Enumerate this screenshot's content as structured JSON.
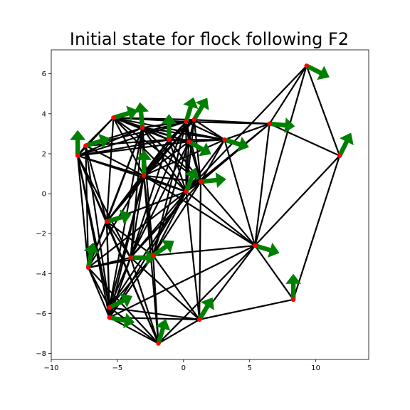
{
  "chart_data": {
    "type": "network",
    "title": "Initial state for flock following F2",
    "xlabel": "",
    "ylabel": "",
    "xlim": [
      -10,
      14
    ],
    "ylim": [
      -8.3,
      7.2
    ],
    "xticks": [
      -10,
      -5,
      0,
      5,
      10
    ],
    "yticks": [
      -8,
      -6,
      -4,
      -2,
      0,
      2,
      4,
      6
    ],
    "grid": false,
    "colors": {
      "edge": "#000000",
      "node": "#ff0000",
      "arrow": "#008000"
    },
    "nodes": [
      {
        "id": 0,
        "x": -8.0,
        "y": 1.9,
        "vx": 0.0,
        "vy": 1.0
      },
      {
        "id": 1,
        "x": -7.4,
        "y": 2.4,
        "vx": 1.0,
        "vy": 0.3
      },
      {
        "id": 2,
        "x": -5.3,
        "y": 3.8,
        "vx": 1.0,
        "vy": 0.3
      },
      {
        "id": 3,
        "x": -3.1,
        "y": 3.3,
        "vx": -0.1,
        "vy": 1.0
      },
      {
        "id": 4,
        "x": -1.1,
        "y": 2.7,
        "vx": 0.0,
        "vy": 1.0
      },
      {
        "id": 5,
        "x": 0.2,
        "y": 3.6,
        "vx": 0.3,
        "vy": 1.0
      },
      {
        "id": 6,
        "x": 0.8,
        "y": 3.7,
        "vx": 0.6,
        "vy": 1.0
      },
      {
        "id": 7,
        "x": 0.4,
        "y": 2.6,
        "vx": 0.9,
        "vy": -0.5
      },
      {
        "id": 8,
        "x": 3.1,
        "y": 2.7,
        "vx": 1.0,
        "vy": -0.3
      },
      {
        "id": 9,
        "x": 6.5,
        "y": 3.5,
        "vx": 1.0,
        "vy": -0.1
      },
      {
        "id": 10,
        "x": 9.3,
        "y": 6.4,
        "vx": 1.0,
        "vy": -0.5
      },
      {
        "id": 11,
        "x": 11.8,
        "y": 1.9,
        "vx": 0.5,
        "vy": 1.0
      },
      {
        "id": 12,
        "x": -3.0,
        "y": 0.9,
        "vx": 0.0,
        "vy": 1.0
      },
      {
        "id": 13,
        "x": 0.2,
        "y": 0.1,
        "vx": 0.4,
        "vy": 1.0
      },
      {
        "id": 14,
        "x": 1.3,
        "y": 0.6,
        "vx": 1.0,
        "vy": 0.1
      },
      {
        "id": 15,
        "x": -5.8,
        "y": -1.4,
        "vx": 1.0,
        "vy": 0.3
      },
      {
        "id": 16,
        "x": -4.0,
        "y": -3.2,
        "vx": 1.0,
        "vy": 0.0
      },
      {
        "id": 17,
        "x": -2.3,
        "y": -3.1,
        "vx": 1.0,
        "vy": 0.7
      },
      {
        "id": 18,
        "x": 5.4,
        "y": -2.6,
        "vx": 1.0,
        "vy": -0.3
      },
      {
        "id": 19,
        "x": -7.2,
        "y": -3.7,
        "vx": 0.2,
        "vy": 1.0
      },
      {
        "id": 20,
        "x": -5.6,
        "y": -5.7,
        "vx": 1.0,
        "vy": 0.5
      },
      {
        "id": 21,
        "x": -5.6,
        "y": -6.2,
        "vx": 1.0,
        "vy": -0.2
      },
      {
        "id": 22,
        "x": -1.9,
        "y": -7.5,
        "vx": 0.3,
        "vy": 1.0
      },
      {
        "id": 23,
        "x": 1.2,
        "y": -6.3,
        "vx": 0.6,
        "vy": 1.0
      },
      {
        "id": 24,
        "x": 8.3,
        "y": -5.3,
        "vx": 0.0,
        "vy": 1.0
      }
    ],
    "edges": [
      [
        0,
        1
      ],
      [
        0,
        2
      ],
      [
        0,
        3
      ],
      [
        0,
        4
      ],
      [
        0,
        5
      ],
      [
        0,
        12
      ],
      [
        0,
        13
      ],
      [
        0,
        15
      ],
      [
        0,
        19
      ],
      [
        0,
        20
      ],
      [
        0,
        21
      ],
      [
        0,
        22
      ],
      [
        0,
        16
      ],
      [
        0,
        7
      ],
      [
        1,
        2
      ],
      [
        1,
        3
      ],
      [
        1,
        4
      ],
      [
        1,
        12
      ],
      [
        1,
        15
      ],
      [
        1,
        19
      ],
      [
        1,
        20
      ],
      [
        1,
        5
      ],
      [
        2,
        3
      ],
      [
        2,
        4
      ],
      [
        2,
        5
      ],
      [
        2,
        6
      ],
      [
        2,
        7
      ],
      [
        2,
        12
      ],
      [
        2,
        14
      ],
      [
        2,
        15
      ],
      [
        2,
        8
      ],
      [
        2,
        13
      ],
      [
        3,
        4
      ],
      [
        3,
        5
      ],
      [
        3,
        6
      ],
      [
        3,
        7
      ],
      [
        3,
        8
      ],
      [
        3,
        12
      ],
      [
        3,
        13
      ],
      [
        3,
        15
      ],
      [
        3,
        16
      ],
      [
        3,
        17
      ],
      [
        3,
        19
      ],
      [
        3,
        14
      ],
      [
        3,
        20
      ],
      [
        4,
        5
      ],
      [
        4,
        6
      ],
      [
        4,
        7
      ],
      [
        4,
        8
      ],
      [
        4,
        12
      ],
      [
        4,
        13
      ],
      [
        4,
        14
      ],
      [
        4,
        15
      ],
      [
        4,
        16
      ],
      [
        5,
        6
      ],
      [
        5,
        7
      ],
      [
        5,
        8
      ],
      [
        5,
        9
      ],
      [
        5,
        12
      ],
      [
        5,
        13
      ],
      [
        5,
        14
      ],
      [
        5,
        16
      ],
      [
        5,
        17
      ],
      [
        6,
        7
      ],
      [
        6,
        8
      ],
      [
        6,
        9
      ],
      [
        6,
        12
      ],
      [
        6,
        13
      ],
      [
        6,
        14
      ],
      [
        6,
        15
      ],
      [
        7,
        8
      ],
      [
        7,
        12
      ],
      [
        7,
        13
      ],
      [
        7,
        14
      ],
      [
        7,
        16
      ],
      [
        7,
        17
      ],
      [
        8,
        9
      ],
      [
        8,
        13
      ],
      [
        8,
        14
      ],
      [
        8,
        18
      ],
      [
        8,
        12
      ],
      [
        9,
        10
      ],
      [
        9,
        11
      ],
      [
        9,
        13
      ],
      [
        9,
        18
      ],
      [
        9,
        14
      ],
      [
        10,
        11
      ],
      [
        10,
        18
      ],
      [
        10,
        13
      ],
      [
        11,
        18
      ],
      [
        11,
        24
      ],
      [
        12,
        13
      ],
      [
        12,
        14
      ],
      [
        12,
        15
      ],
      [
        12,
        16
      ],
      [
        12,
        17
      ],
      [
        12,
        19
      ],
      [
        12,
        20
      ],
      [
        12,
        21
      ],
      [
        12,
        22
      ],
      [
        12,
        18
      ],
      [
        13,
        14
      ],
      [
        13,
        15
      ],
      [
        13,
        16
      ],
      [
        13,
        17
      ],
      [
        13,
        18
      ],
      [
        13,
        19
      ],
      [
        13,
        20
      ],
      [
        13,
        21
      ],
      [
        13,
        23
      ],
      [
        14,
        18
      ],
      [
        14,
        23
      ],
      [
        14,
        16
      ],
      [
        14,
        17
      ],
      [
        15,
        16
      ],
      [
        15,
        17
      ],
      [
        15,
        19
      ],
      [
        15,
        20
      ],
      [
        15,
        21
      ],
      [
        15,
        22
      ],
      [
        15,
        13
      ],
      [
        16,
        17
      ],
      [
        16,
        19
      ],
      [
        16,
        20
      ],
      [
        16,
        21
      ],
      [
        16,
        22
      ],
      [
        16,
        23
      ],
      [
        17,
        19
      ],
      [
        17,
        20
      ],
      [
        17,
        21
      ],
      [
        17,
        22
      ],
      [
        17,
        23
      ],
      [
        17,
        18
      ],
      [
        18,
        23
      ],
      [
        18,
        24
      ],
      [
        18,
        21
      ],
      [
        19,
        20
      ],
      [
        19,
        21
      ],
      [
        19,
        22
      ],
      [
        20,
        21
      ],
      [
        20,
        22
      ],
      [
        20,
        23
      ],
      [
        21,
        22
      ],
      [
        21,
        23
      ],
      [
        22,
        23
      ],
      [
        22,
        18
      ],
      [
        23,
        24
      ]
    ]
  }
}
